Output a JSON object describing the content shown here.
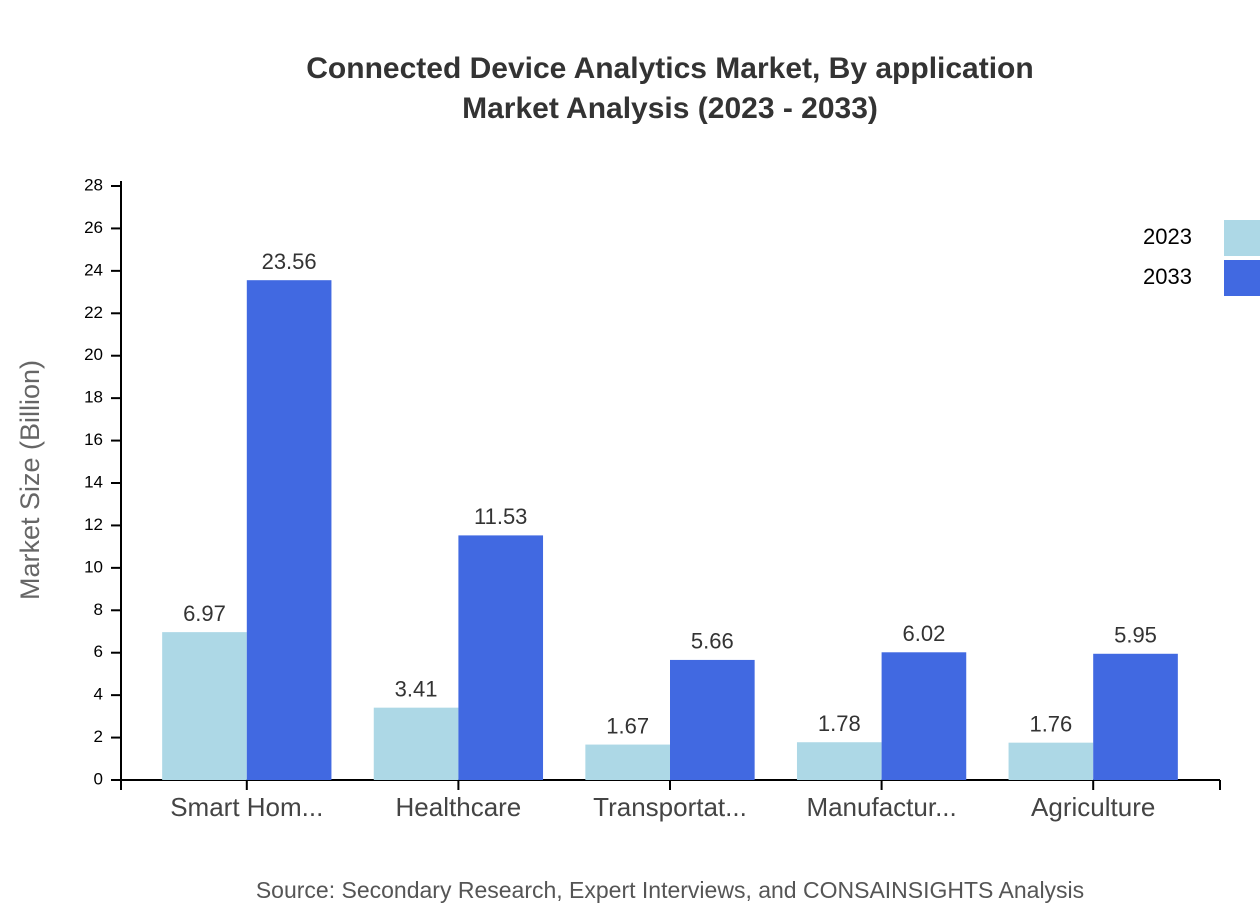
{
  "chart_data": {
    "type": "bar",
    "title": "Connected Device Analytics Market, By application",
    "subtitle": "Market Analysis (2023 - 2033)",
    "y_label": "Market Size (Billion)",
    "source": "Source: Secondary Research, Expert Interviews, and CONSAINSIGHTS Analysis",
    "categories": [
      "Smart Hom...",
      "Healthcare",
      "Transportat...",
      "Manufactur...",
      "Agriculture"
    ],
    "series": [
      {
        "name": "2023",
        "color": "#add8e6",
        "values": [
          6.97,
          3.41,
          1.67,
          1.78,
          1.76
        ]
      },
      {
        "name": "2033",
        "color": "#4169e1",
        "values": [
          23.56,
          11.53,
          5.66,
          6.02,
          5.95
        ]
      }
    ],
    "ylim": [
      0,
      28
    ],
    "yticks": [
      0,
      2,
      4,
      6,
      8,
      10,
      12,
      14,
      16,
      18,
      20,
      22,
      24,
      26,
      28
    ],
    "legend": "top-right"
  }
}
